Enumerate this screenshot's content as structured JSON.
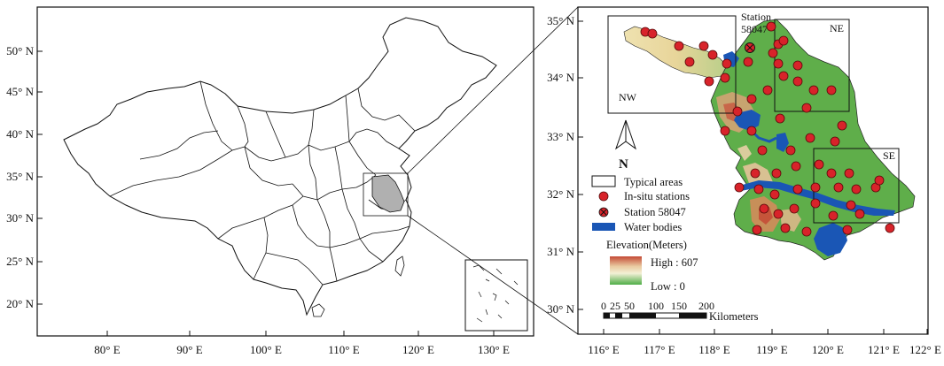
{
  "left_map": {
    "y_ticks": [
      "50° N",
      "45° N",
      "40° N",
      "35° N",
      "30° N",
      "25° N",
      "20° N"
    ],
    "x_ticks": [
      "80° E",
      "90° E",
      "100° E",
      "110° E",
      "120° E",
      "130° E"
    ]
  },
  "right_map": {
    "y_ticks": [
      "35° N",
      "34° N",
      "33° N",
      "32° N",
      "31° N",
      "30° N"
    ],
    "x_ticks": [
      "116° E",
      "117° E",
      "118° E",
      "119° E",
      "120° E",
      "121° E",
      "122° E"
    ],
    "region_labels": {
      "nw": "NW",
      "ne": "NE",
      "se": "SE"
    },
    "station_label_line1": "Station",
    "station_label_line2": "58047",
    "north_arrow": "N",
    "legend": {
      "typical_areas": "Typical areas",
      "insitu": "In-situ stations",
      "station58047": "Station 58047",
      "water": "Water bodies",
      "elevation_title": "Elevation(Meters)",
      "high": "High : 607",
      "low": "Low :  0"
    },
    "scale": {
      "ticks": [
        "0",
        "25",
        "50",
        "100",
        "150",
        "200"
      ],
      "unit": "Kilometers"
    }
  },
  "colors": {
    "frame": "#111111",
    "province_fill": "#b0b0b0",
    "land_green": "#5fae4a",
    "water_blue": "#1a56b5",
    "station_red": "#d8232a",
    "elev_high": "#c9503a",
    "elev_low": "#56b04a"
  }
}
